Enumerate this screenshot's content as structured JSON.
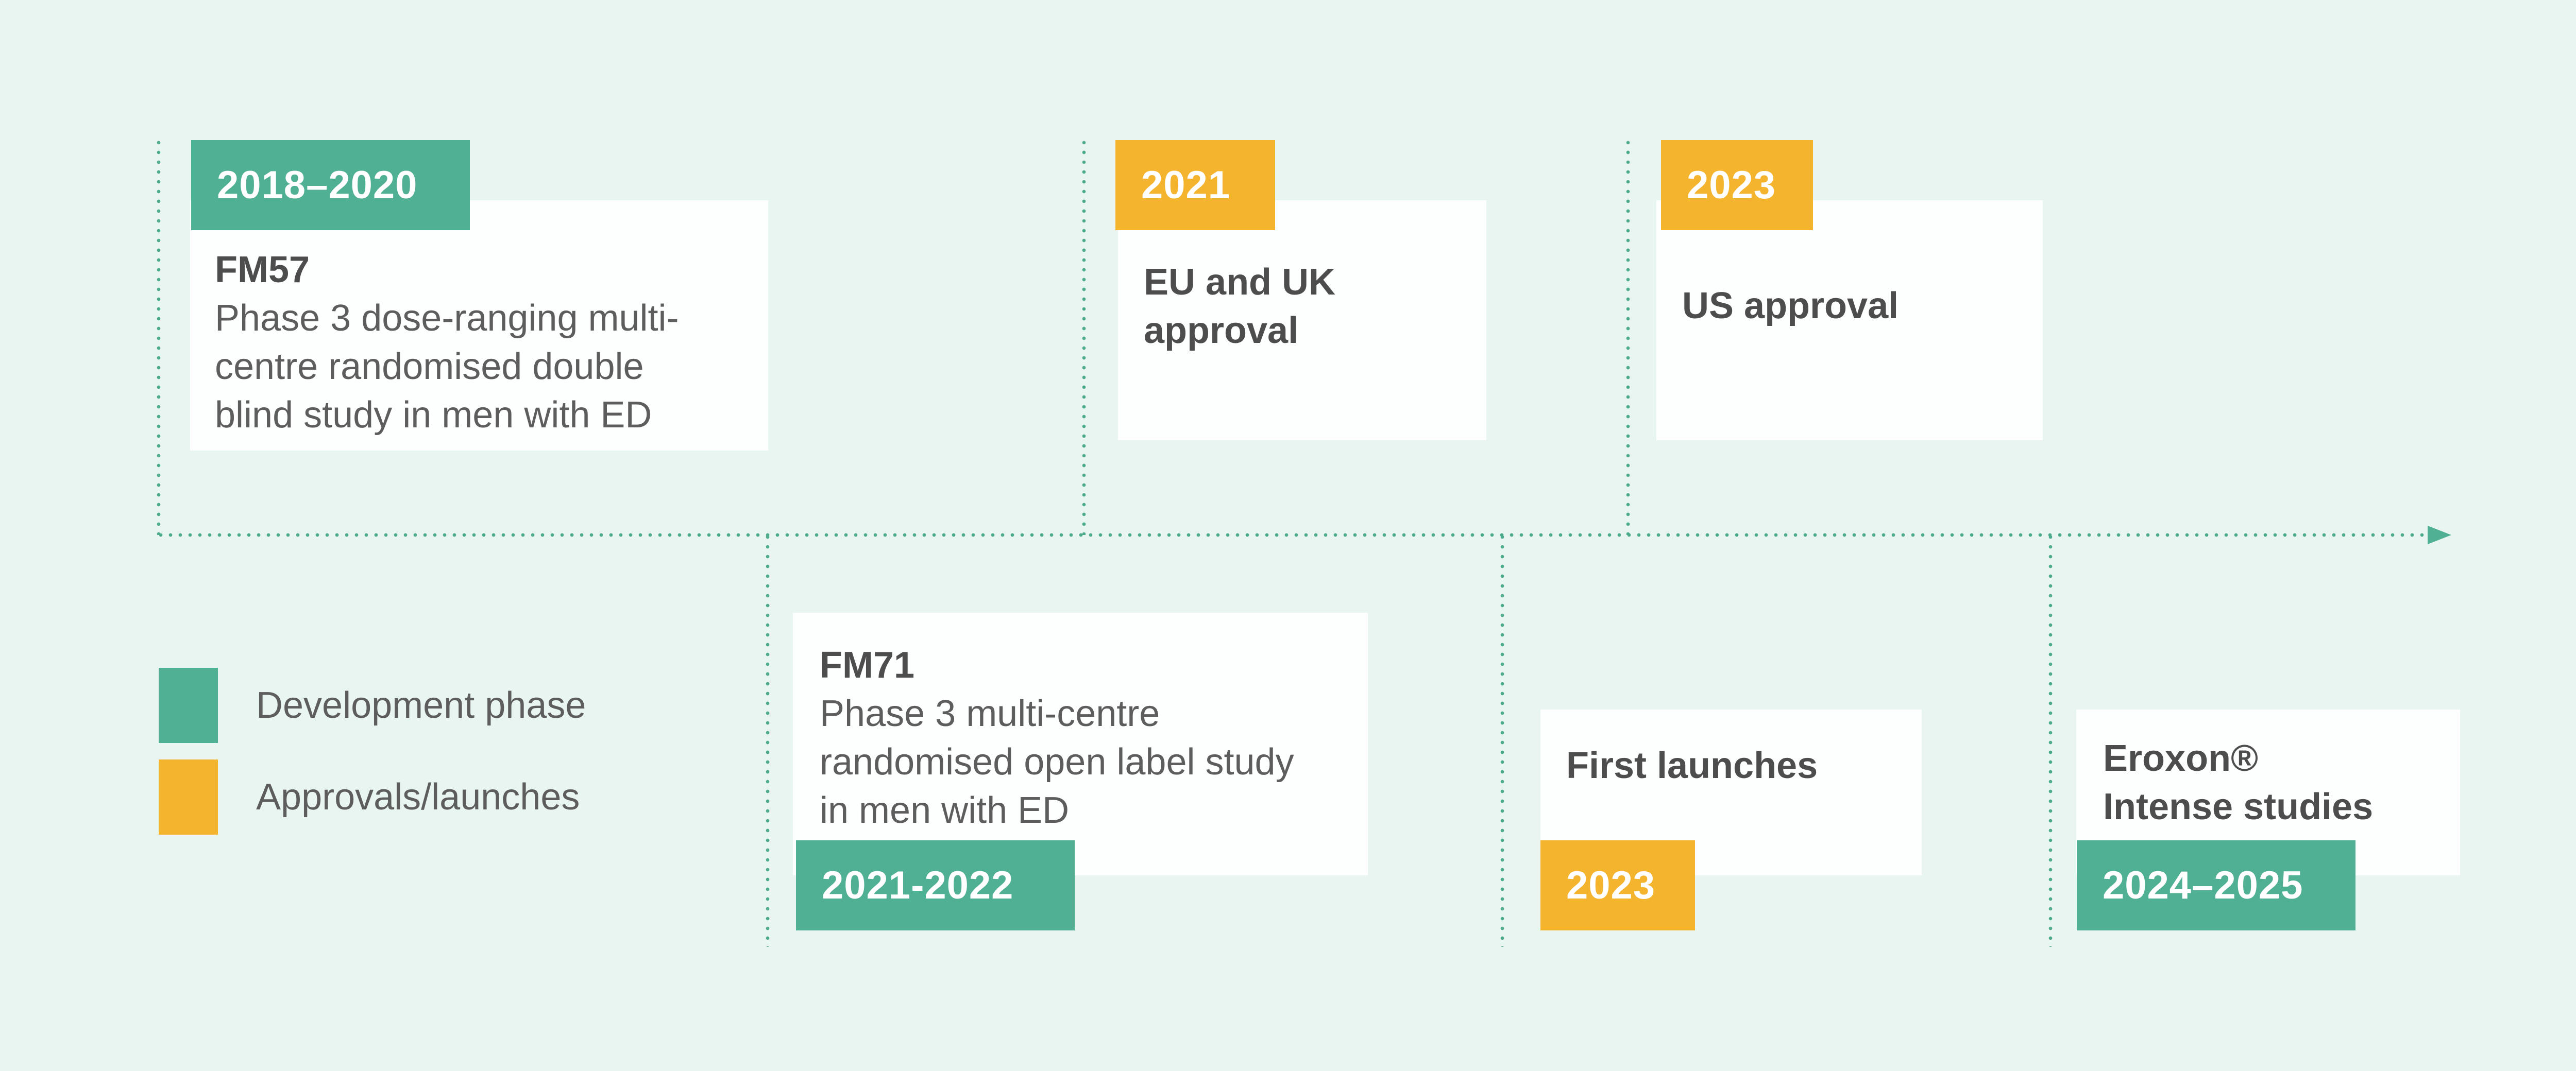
{
  "colors": {
    "background": "#e9f5f1",
    "green": "#4fb093",
    "yellow": "#f5b42d",
    "card": "#fdfefe",
    "title_text": "#4d4d4d",
    "body_text": "#5d5d5d",
    "dotted_line": "#4caa8d"
  },
  "legend": {
    "items": [
      {
        "label": "Development phase",
        "swatch_color": "green"
      },
      {
        "label": "Approvals/launches",
        "swatch_color": "yellow"
      }
    ]
  },
  "timeline": {
    "arrow_icon": "right-arrow"
  },
  "events_above": [
    {
      "badge": "2018–2020",
      "badge_color": "green",
      "title": "FM57",
      "body": "Phase 3 dose-ranging multi-\ncentre randomised double\nblind study in men with ED"
    },
    {
      "badge": "2021",
      "badge_color": "yellow",
      "title": "EU and UK\napproval",
      "body": ""
    },
    {
      "badge": "2023",
      "badge_color": "yellow",
      "title": "US approval",
      "body": ""
    }
  ],
  "events_below": [
    {
      "badge": "2021-2022",
      "badge_color": "green",
      "title": "FM71",
      "body": "Phase 3 multi-centre\nrandomised open label study\nin men with ED"
    },
    {
      "badge": "2023",
      "badge_color": "yellow",
      "title": "First launches",
      "body": ""
    },
    {
      "badge": "2024–2025",
      "badge_color": "green",
      "title": "Eroxon®\nIntense studies",
      "body": ""
    }
  ]
}
